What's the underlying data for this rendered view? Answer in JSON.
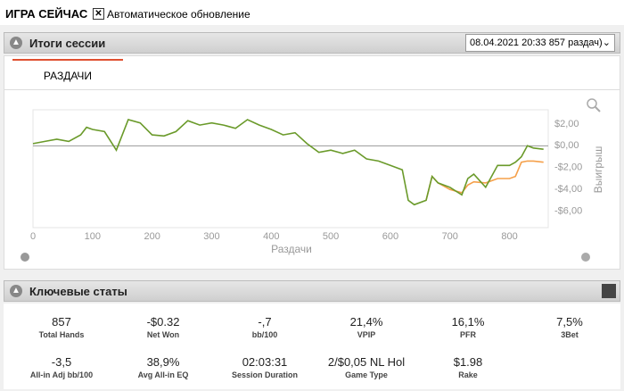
{
  "header": {
    "title": "ИГРА СЕЙЧАС",
    "checkbox_label": "Автоматическое обновление"
  },
  "session": {
    "title": "Итоги сессии",
    "dropdown": "08.04.2021 20:33 857 раздач)",
    "tab": "РАЗДАЧИ"
  },
  "chart_data": {
    "type": "line",
    "x_label": "Раздачи",
    "y_label": "Выигрыш",
    "x": [
      0,
      20,
      40,
      60,
      80,
      90,
      100,
      120,
      140,
      150,
      160,
      180,
      200,
      220,
      240,
      260,
      280,
      300,
      320,
      340,
      360,
      380,
      400,
      420,
      440,
      460,
      480,
      500,
      520,
      540,
      560,
      580,
      600,
      620,
      630,
      640,
      660,
      670,
      680,
      700,
      720,
      730,
      740,
      760,
      780,
      800,
      810,
      820,
      830,
      840,
      857
    ],
    "series": [
      {
        "color": "#f5a04a",
        "values": [
          null,
          null,
          null,
          null,
          null,
          null,
          null,
          null,
          null,
          null,
          null,
          null,
          null,
          null,
          null,
          null,
          null,
          null,
          null,
          null,
          null,
          null,
          null,
          null,
          null,
          null,
          null,
          null,
          null,
          null,
          null,
          null,
          null,
          null,
          null,
          null,
          -5.0,
          -2.8,
          -3.4,
          -4.0,
          -4.3,
          -3.6,
          -3.3,
          -3.4,
          -3.0,
          -3.0,
          -2.8,
          -1.5,
          -1.4,
          -1.4,
          -1.5
        ]
      },
      {
        "color": "#6a9a2a",
        "values": [
          0.2,
          0.4,
          0.6,
          0.4,
          1.0,
          1.7,
          1.5,
          1.3,
          -0.4,
          1.0,
          2.4,
          2.1,
          1.0,
          0.9,
          1.3,
          2.3,
          1.9,
          2.1,
          1.9,
          1.6,
          2.4,
          1.9,
          1.5,
          1.0,
          1.2,
          0.2,
          -0.6,
          -0.4,
          -0.7,
          -0.4,
          -1.2,
          -1.4,
          -1.8,
          -2.2,
          -5.0,
          -5.4,
          -5.0,
          -2.8,
          -3.4,
          -3.8,
          -4.5,
          -3.0,
          -2.6,
          -3.8,
          -1.8,
          -1.8,
          -1.5,
          -1.0,
          0.0,
          -0.2,
          -0.32
        ]
      }
    ],
    "xlim": [
      0,
      865
    ],
    "xticks": [
      0,
      100,
      200,
      300,
      400,
      500,
      600,
      700,
      800
    ],
    "ylim": [
      -7.5,
      3.3
    ],
    "yticks": [
      {
        "value": 2,
        "label": "$2,00"
      },
      {
        "value": 0,
        "label": "$0,00"
      },
      {
        "value": -2,
        "label": "-$2,00"
      },
      {
        "value": -4,
        "label": "-$4,00"
      },
      {
        "value": -6,
        "label": "-$6,00"
      }
    ],
    "zero_line": true
  },
  "stats_title": "Ключевые статы",
  "stats": [
    {
      "value": "857",
      "label": "Total Hands"
    },
    {
      "value": "-$0.32",
      "label": "Net Won"
    },
    {
      "value": "-,7",
      "label": "bb/100"
    },
    {
      "value": "21,4%",
      "label": "VPIP"
    },
    {
      "value": "16,1%",
      "label": "PFR"
    },
    {
      "value": "7,5%",
      "label": "3Bet"
    },
    {
      "value": "-3,5",
      "label": "All-in Adj bb/100"
    },
    {
      "value": "38,9%",
      "label": "Avg All-in EQ"
    },
    {
      "value": "02:03:31",
      "label": "Session Duration"
    },
    {
      "value": "2/$0,05 NL Hol",
      "label": "Game Type"
    },
    {
      "value": "$1.98",
      "label": "Rake"
    }
  ]
}
